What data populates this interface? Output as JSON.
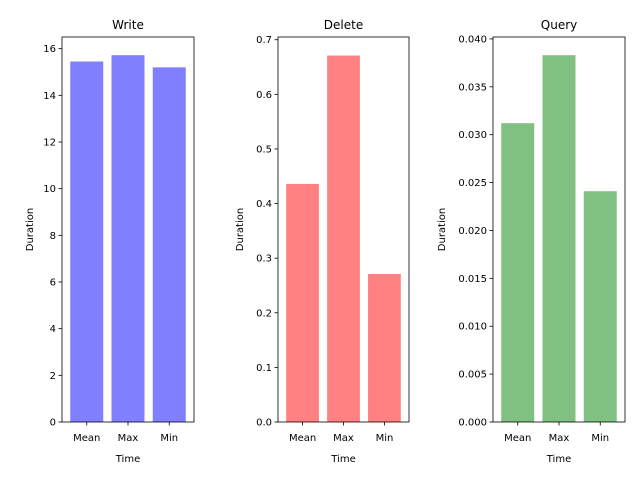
{
  "chart_data": [
    {
      "type": "bar",
      "title": "Write",
      "xlabel": "Time",
      "ylabel": "Duration",
      "categories": [
        "Mean",
        "Max",
        "Min"
      ],
      "values": [
        15.45,
        15.72,
        15.2
      ],
      "ylim": [
        0,
        16.5
      ],
      "yticks": [
        0,
        2,
        4,
        6,
        8,
        10,
        12,
        14,
        16
      ],
      "ytick_labels": [
        "0",
        "2",
        "4",
        "6",
        "8",
        "10",
        "12",
        "14",
        "16"
      ],
      "color": "#8080ff",
      "grid": false,
      "legend": "none"
    },
    {
      "type": "bar",
      "title": "Delete",
      "xlabel": "Time",
      "ylabel": "Duration",
      "categories": [
        "Mean",
        "Max",
        "Min"
      ],
      "values": [
        0.436,
        0.671,
        0.271
      ],
      "ylim": [
        0,
        0.705
      ],
      "yticks": [
        0,
        0.1,
        0.2,
        0.3,
        0.4,
        0.5,
        0.6,
        0.7
      ],
      "ytick_labels": [
        "0.0",
        "0.1",
        "0.2",
        "0.3",
        "0.4",
        "0.5",
        "0.6",
        "0.7"
      ],
      "color": "#ff8080",
      "grid": false,
      "legend": "none"
    },
    {
      "type": "bar",
      "title": "Query",
      "xlabel": "Time",
      "ylabel": "Duration",
      "categories": [
        "Mean",
        "Max",
        "Min"
      ],
      "values": [
        0.0312,
        0.0383,
        0.0241
      ],
      "ylim": [
        0,
        0.0402
      ],
      "yticks": [
        0,
        0.005,
        0.01,
        0.015,
        0.02,
        0.025,
        0.03,
        0.035,
        0.04
      ],
      "ytick_labels": [
        "0.000",
        "0.005",
        "0.010",
        "0.015",
        "0.020",
        "0.025",
        "0.030",
        "0.035",
        "0.040"
      ],
      "color": "#80c080",
      "grid": false,
      "legend": "none"
    }
  ]
}
